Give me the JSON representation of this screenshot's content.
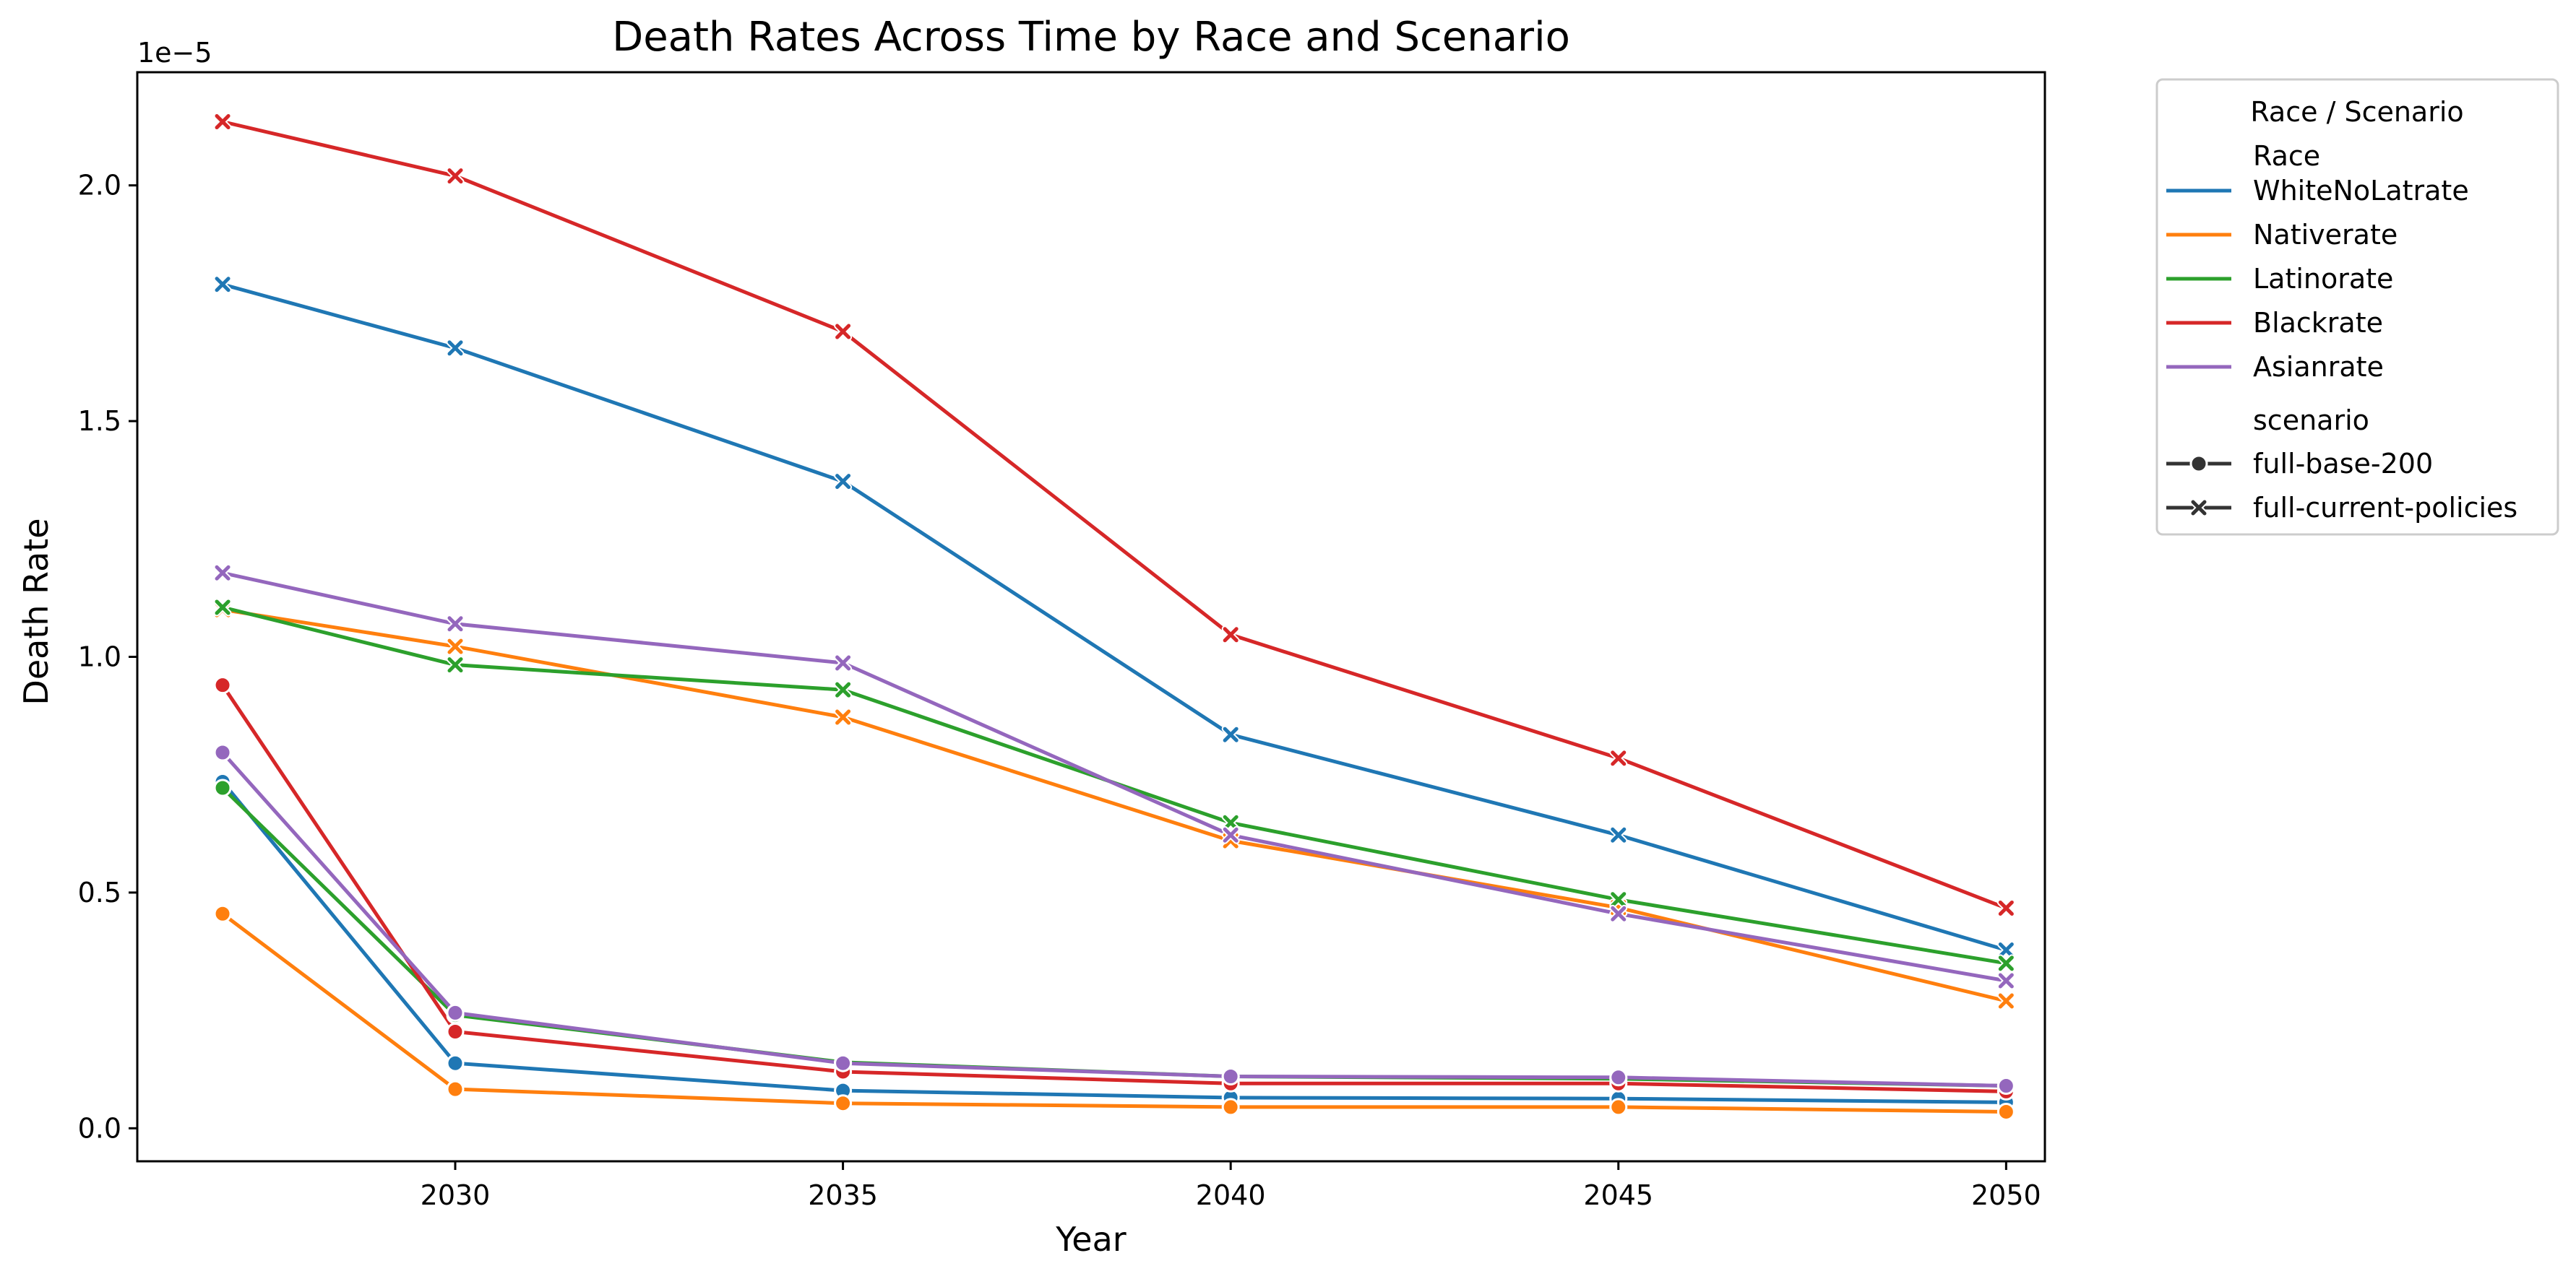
{
  "chart_data": {
    "type": "line",
    "title": "Death Rates Across Time by Race and Scenario",
    "xlabel": "Year",
    "ylabel": "Death Rate",
    "y_offset_label": "1e−5",
    "x_ticks": [
      2030,
      2035,
      2040,
      2045,
      2050
    ],
    "y_ticks": [
      0.0,
      0.5,
      1.0,
      1.5,
      2.0
    ],
    "y_tick_labels": [
      "0.0",
      "0.5",
      "1.0",
      "1.5",
      "2.0"
    ],
    "x_tick_labels": [
      "2030",
      "2035",
      "2040",
      "2045",
      "2050"
    ],
    "xlim": [
      2025.9,
      2050.5
    ],
    "ylim": [
      -0.07,
      2.24
    ],
    "y_unit_scale": 1e-05,
    "grid": false,
    "x": [
      2027,
      2030,
      2035,
      2040,
      2045,
      2050
    ],
    "legend": {
      "title": "Race / Scenario",
      "placement": "outside-top-right",
      "race_header": "Race",
      "scenario_header": "scenario",
      "races": [
        "WhiteNoLatrate",
        "Nativerate",
        "Latinorate",
        "Blackrate",
        "Asianrate"
      ],
      "scenarios": [
        "full-base-200",
        "full-current-policies"
      ]
    },
    "colors": {
      "WhiteNoLatrate": "#1f77b4",
      "Nativerate": "#ff7f0e",
      "Latinorate": "#2ca02c",
      "Blackrate": "#d62728",
      "Asianrate": "#9467bd"
    },
    "markers": {
      "full-base-200": "circle",
      "full-current-policies": "x"
    },
    "series": [
      {
        "race": "WhiteNoLatrate",
        "scenario": "full-current-policies",
        "values": [
          1.79,
          1.655,
          1.372,
          0.835,
          0.622,
          0.378
        ]
      },
      {
        "race": "Nativerate",
        "scenario": "full-current-policies",
        "values": [
          1.1,
          1.022,
          0.872,
          0.61,
          0.468,
          0.27
        ]
      },
      {
        "race": "Latinorate",
        "scenario": "full-current-policies",
        "values": [
          1.105,
          0.983,
          0.93,
          0.648,
          0.485,
          0.35
        ]
      },
      {
        "race": "Blackrate",
        "scenario": "full-current-policies",
        "values": [
          2.135,
          2.02,
          1.69,
          1.047,
          0.785,
          0.467
        ]
      },
      {
        "race": "Asianrate",
        "scenario": "full-current-policies",
        "values": [
          1.178,
          1.07,
          0.987,
          0.622,
          0.455,
          0.313
        ]
      },
      {
        "race": "WhiteNoLatrate",
        "scenario": "full-base-200",
        "values": [
          0.735,
          0.138,
          0.08,
          0.065,
          0.063,
          0.055
        ]
      },
      {
        "race": "Nativerate",
        "scenario": "full-base-200",
        "values": [
          0.455,
          0.083,
          0.053,
          0.045,
          0.045,
          0.035
        ]
      },
      {
        "race": "Latinorate",
        "scenario": "full-base-200",
        "values": [
          0.722,
          0.24,
          0.14,
          0.11,
          0.105,
          0.09
        ]
      },
      {
        "race": "Blackrate",
        "scenario": "full-base-200",
        "values": [
          0.94,
          0.205,
          0.12,
          0.095,
          0.095,
          0.078
        ]
      },
      {
        "race": "Asianrate",
        "scenario": "full-base-200",
        "values": [
          0.797,
          0.245,
          0.138,
          0.11,
          0.108,
          0.09
        ]
      }
    ]
  }
}
